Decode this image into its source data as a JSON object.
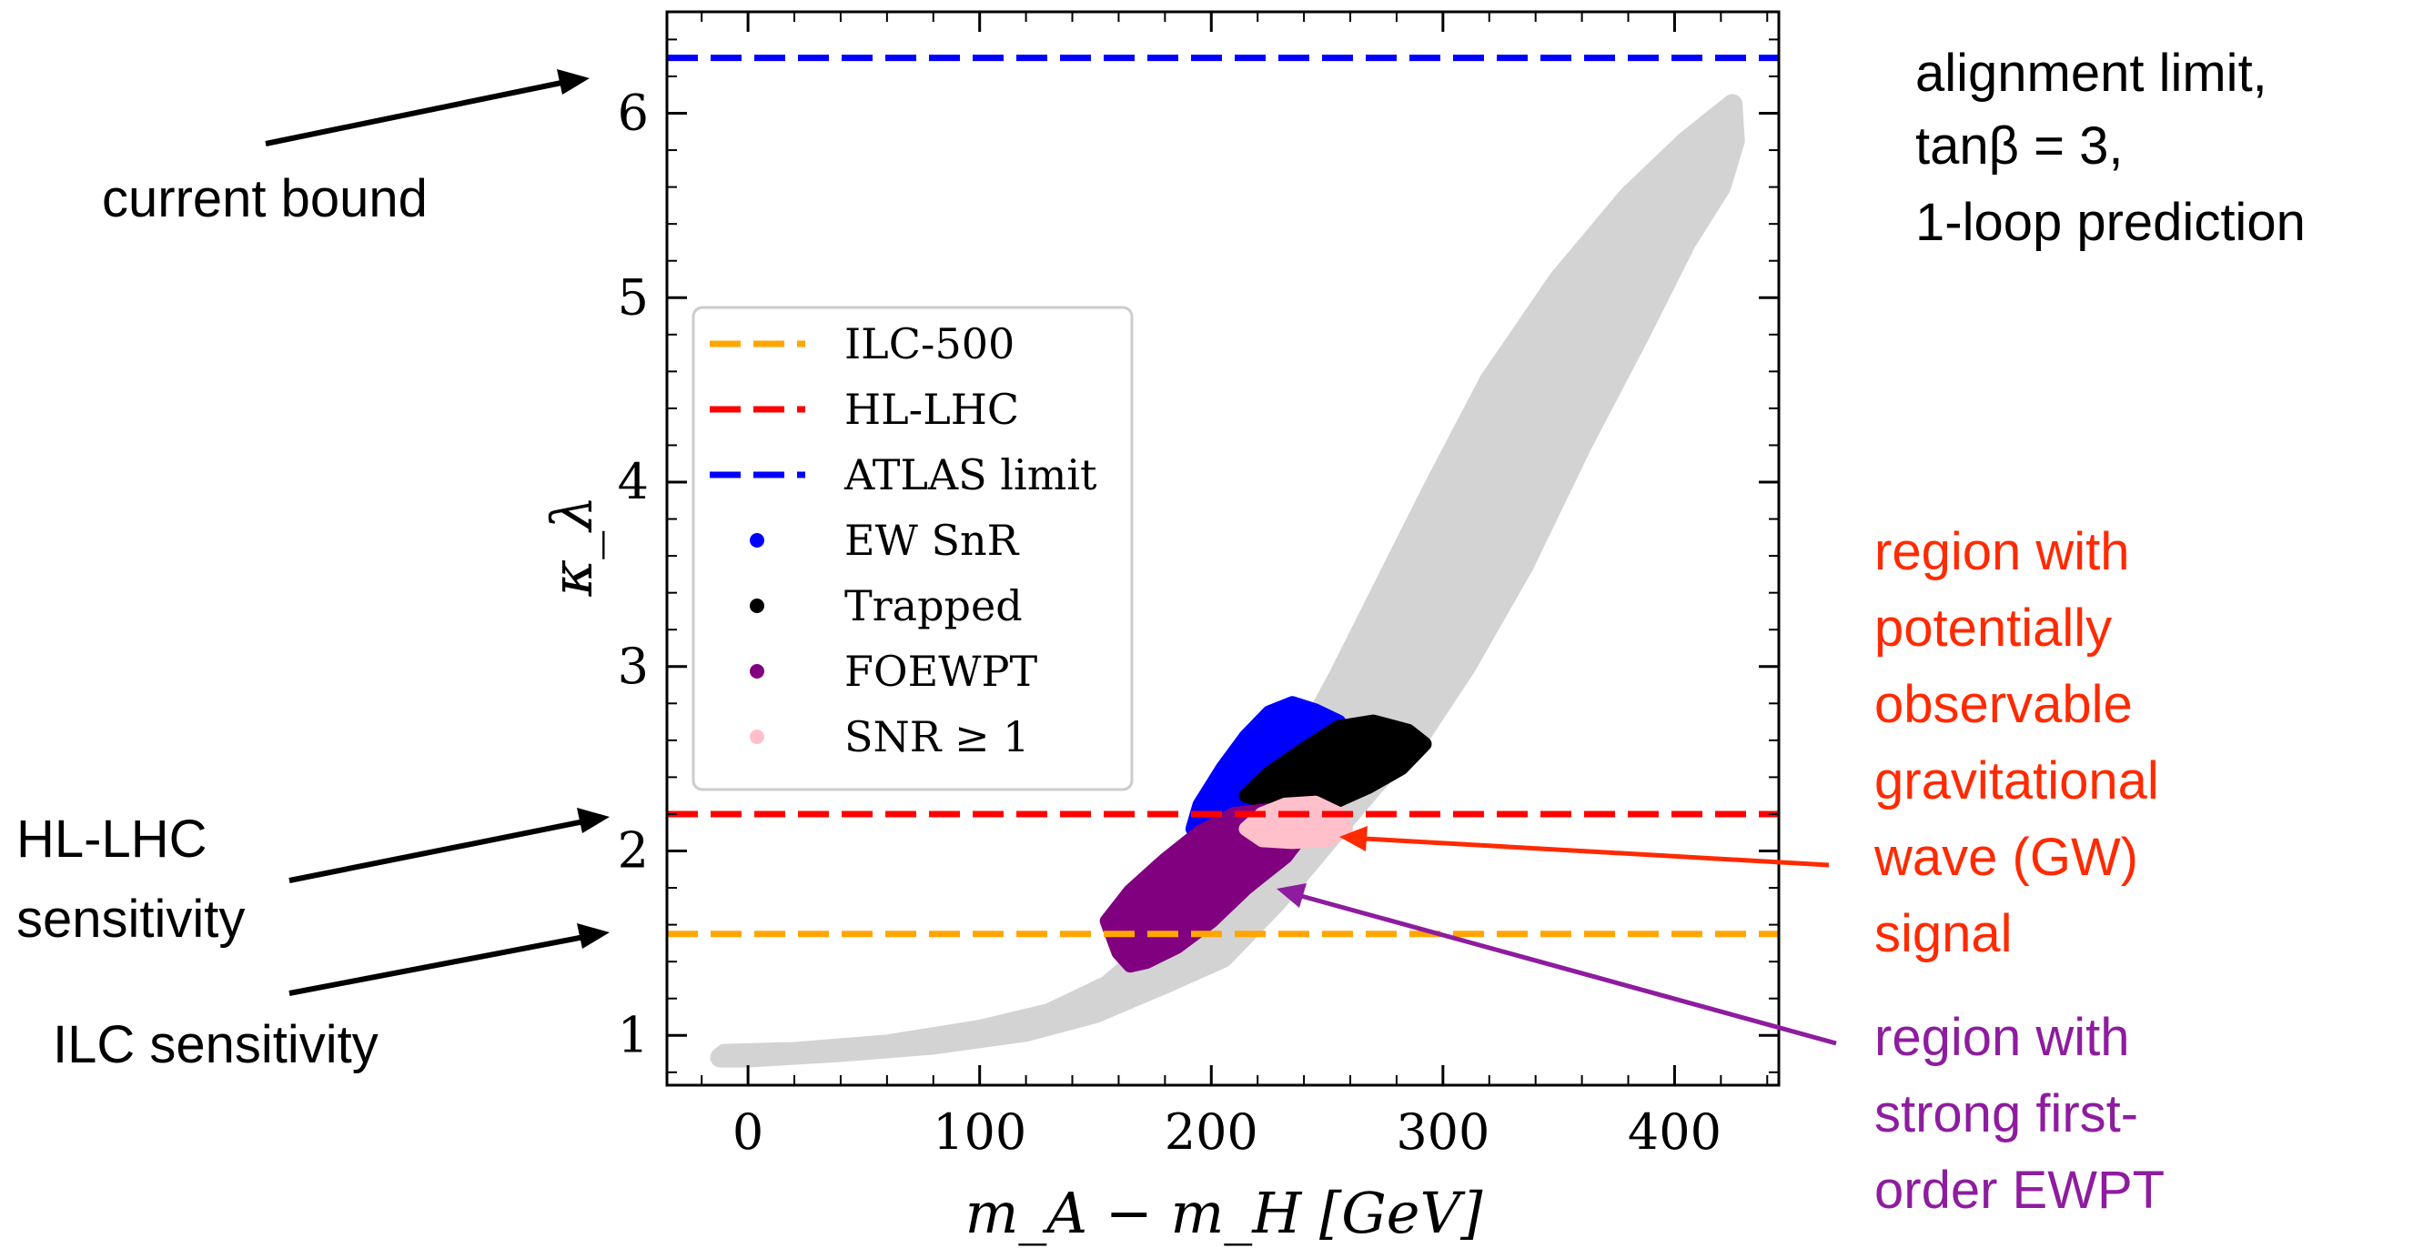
{
  "chart_data": {
    "type": "scatter",
    "xlabel": "m_A − m_H [GeV]",
    "ylabel": "κ_λ",
    "xlim": [
      -35,
      445
    ],
    "ylim": [
      0.73,
      6.55
    ],
    "xticks": [
      0,
      100,
      200,
      300,
      400
    ],
    "yticks": [
      1,
      2,
      3,
      4,
      5,
      6
    ],
    "grid": false,
    "legend_position": "upper-left",
    "hlines": [
      {
        "name": "ILC-500",
        "y": 1.55,
        "color": "#ffa500",
        "style": "dashed"
      },
      {
        "name": "HL-LHC",
        "y": 2.2,
        "color": "#ff0000",
        "style": "dashed"
      },
      {
        "name": "ATLAS limit",
        "y": 6.3,
        "color": "#0000ff",
        "style": "dashed"
      }
    ],
    "regions": [
      {
        "name": "EW SnR",
        "color": "#0000ff",
        "outline": [
          [
            195,
            2.25
          ],
          [
            205,
            2.45
          ],
          [
            215,
            2.62
          ],
          [
            225,
            2.75
          ],
          [
            235,
            2.8
          ],
          [
            245,
            2.76
          ],
          [
            255,
            2.7
          ],
          [
            252,
            2.55
          ],
          [
            240,
            2.4
          ],
          [
            225,
            2.3
          ],
          [
            212,
            2.22
          ],
          [
            200,
            2.15
          ],
          [
            192,
            2.12
          ]
        ]
      },
      {
        "name": "Trapped",
        "color": "#000000",
        "outline": [
          [
            215,
            2.3
          ],
          [
            225,
            2.42
          ],
          [
            240,
            2.55
          ],
          [
            255,
            2.67
          ],
          [
            270,
            2.7
          ],
          [
            285,
            2.65
          ],
          [
            292,
            2.58
          ],
          [
            282,
            2.45
          ],
          [
            268,
            2.35
          ],
          [
            252,
            2.26
          ],
          [
            240,
            2.24
          ],
          [
            225,
            2.26
          ]
        ]
      },
      {
        "name": "FOEWPT",
        "color": "#800080",
        "outline": [
          [
            155,
            1.62
          ],
          [
            165,
            1.78
          ],
          [
            180,
            1.95
          ],
          [
            195,
            2.1
          ],
          [
            210,
            2.2
          ],
          [
            225,
            2.22
          ],
          [
            235,
            2.18
          ],
          [
            240,
            2.1
          ],
          [
            232,
            1.97
          ],
          [
            215,
            1.8
          ],
          [
            200,
            1.62
          ],
          [
            185,
            1.48
          ],
          [
            172,
            1.4
          ],
          [
            165,
            1.38
          ],
          [
            160,
            1.45
          ]
        ]
      },
      {
        "name": "SNR ≥ 1",
        "color": "#ffc0cb",
        "outline": [
          [
            215,
            2.12
          ],
          [
            222,
            2.2
          ],
          [
            232,
            2.25
          ],
          [
            245,
            2.26
          ],
          [
            255,
            2.2
          ],
          [
            258,
            2.12
          ],
          [
            250,
            2.06
          ],
          [
            235,
            2.05
          ],
          [
            222,
            2.06
          ]
        ]
      }
    ],
    "background_region": {
      "color": "#d3d3d3",
      "outline": [
        [
          -10,
          0.9
        ],
        [
          20,
          0.91
        ],
        [
          60,
          0.95
        ],
        [
          100,
          1.03
        ],
        [
          130,
          1.12
        ],
        [
          155,
          1.27
        ],
        [
          175,
          1.48
        ],
        [
          195,
          1.75
        ],
        [
          215,
          2.08
        ],
        [
          235,
          2.48
        ],
        [
          255,
          2.95
        ],
        [
          275,
          3.45
        ],
        [
          295,
          3.95
        ],
        [
          320,
          4.55
        ],
        [
          350,
          5.1
        ],
        [
          380,
          5.55
        ],
        [
          405,
          5.85
        ],
        [
          420,
          6.0
        ],
        [
          425,
          6.05
        ],
        [
          426,
          5.85
        ],
        [
          420,
          5.6
        ],
        [
          405,
          5.3
        ],
        [
          385,
          4.8
        ],
        [
          360,
          4.2
        ],
        [
          335,
          3.55
        ],
        [
          310,
          3.0
        ],
        [
          290,
          2.62
        ],
        [
          270,
          2.35
        ],
        [
          250,
          2.05
        ],
        [
          228,
          1.72
        ],
        [
          205,
          1.42
        ],
        [
          180,
          1.28
        ],
        [
          150,
          1.12
        ],
        [
          120,
          1.02
        ],
        [
          80,
          0.95
        ],
        [
          40,
          0.91
        ],
        [
          0,
          0.88
        ],
        [
          -12,
          0.88
        ]
      ]
    },
    "legend": [
      {
        "label": "ILC-500",
        "kind": "line",
        "color": "#ffa500"
      },
      {
        "label": "HL-LHC",
        "kind": "line",
        "color": "#ff0000"
      },
      {
        "label": "ATLAS limit",
        "kind": "line",
        "color": "#0000ff"
      },
      {
        "label": "EW SnR",
        "kind": "dot",
        "color": "#0000ff"
      },
      {
        "label": "Trapped",
        "kind": "dot",
        "color": "#000000"
      },
      {
        "label": "FOEWPT",
        "kind": "dot",
        "color": "#800080"
      },
      {
        "label": "SNR ≥ 1",
        "kind": "dot",
        "color": "#ffc0cb"
      }
    ]
  },
  "annotations": {
    "current_bound": "current bound",
    "alignment_line1": "alignment limit,",
    "alignment_line2": "tanβ = 3,",
    "alignment_line3": "1-loop prediction",
    "hl_lhc_line1": "HL-LHC",
    "hl_lhc_line2": "sensitivity",
    "ilc": "ILC sensitivity",
    "gw_lines": [
      "region with",
      "potentially",
      "observable",
      "gravitational",
      "wave (GW)",
      "signal"
    ],
    "gw_color": "#ff2a00",
    "foewpt_lines": [
      "region with",
      "strong first-",
      "order EWPT"
    ],
    "foewpt_color": "#8e1c9f"
  }
}
